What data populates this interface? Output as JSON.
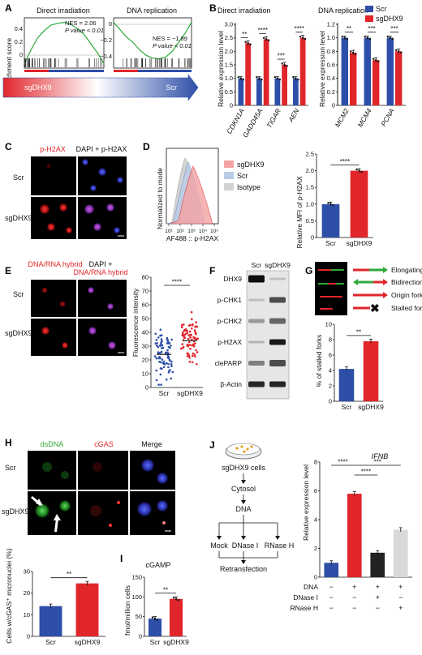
{
  "colors": {
    "scr": "#2e4fa8",
    "sg": "#e0262b",
    "gsea": "#2eaa3a",
    "grey": "#bdbdbd",
    "light": "#d9d9d9"
  },
  "A": {
    "label": "A",
    "ylabel": "Enrichment score",
    "left": {
      "title": "Direct irradiation",
      "nes": "NES = 2.06",
      "p": "P value < 0.01",
      "ticks": [
        "0.4",
        "0.2",
        "0"
      ]
    },
    "right": {
      "title": "DNA replication",
      "nes": "NES = −1.89",
      "p": "P value < 0.01",
      "ticks": [
        "0",
        "−0.2",
        "−0.4"
      ]
    },
    "sg": "sgDHX9",
    "scr": "Scr"
  },
  "B": {
    "label": "B",
    "ylabel": "Relative expression level",
    "legend": [
      "Scr",
      "sgDHX9"
    ],
    "left": {
      "title": "Direct irradiation",
      "yticks": [
        "0",
        "0.5",
        "1.0",
        "1.5",
        "2.0",
        "2.5",
        "3.0"
      ],
      "genes": [
        "CDKN1A",
        "GADD45A",
        "TIGAR",
        "AEN"
      ],
      "sig": [
        "**",
        "****",
        "***",
        "****"
      ]
    },
    "right": {
      "title": "DNA replication",
      "yticks": [
        "0",
        "0.2",
        "0.4",
        "0.6",
        "0.8",
        "1.0",
        "1.2"
      ],
      "genes": [
        "MCM2",
        "MCM4",
        "PCNA"
      ],
      "sig": [
        "**",
        "***",
        "***"
      ]
    }
  },
  "C": {
    "label": "C",
    "col1": "p-H2AX",
    "col2": "DAPI + p-H2AX",
    "rows": [
      "Scr",
      "sgDHX9"
    ]
  },
  "D": {
    "label": "D",
    "ylabel": "Normalized to mode",
    "xlabel": "AF488 :: p-H2AX",
    "xticks": [
      "10¹",
      "10²",
      "10³",
      "10⁴",
      "10⁵"
    ],
    "legend": [
      "sgDHX9",
      "Scr",
      "Isotype"
    ],
    "bar_ylabel": "Relative MFI of p-H2AX",
    "bar_yticks": [
      "0",
      "0.5",
      "1.0",
      "1.5",
      "2.0",
      "2.5"
    ],
    "bar_x": [
      "Scr",
      "sgDHX9"
    ],
    "sig": "****"
  },
  "E": {
    "label": "E",
    "col1": "DNA/RNA hybrid",
    "col2a": "DAPI +",
    "col2b": "DNA/RNA hybrid",
    "rows": [
      "Scr",
      "sgDHX9"
    ],
    "ylabel": "Fluorescence intensity",
    "yticks": [
      "0",
      "10",
      "20",
      "30",
      "40",
      "50",
      "60",
      "70",
      "80"
    ],
    "x": [
      "Scr",
      "sgDHX9"
    ],
    "sig": "****"
  },
  "F": {
    "label": "F",
    "cols": [
      "Scr",
      "sgDHX9"
    ],
    "rows": [
      "DHX9",
      "p-CHK1",
      "p-CHK2",
      "p-H2AX",
      "clePARP",
      "β-Actin"
    ]
  },
  "G": {
    "label": "G",
    "legend": [
      "Elongating fork",
      "Bidirectional fork",
      "Origin fork",
      "Stalled fork"
    ],
    "ylabel": "% of stalled forks",
    "yticks": [
      "0",
      "2",
      "4",
      "6",
      "8",
      "10"
    ],
    "x": [
      "Scr",
      "sgDHX9"
    ],
    "sig": "**"
  },
  "H": {
    "label": "H",
    "cols": [
      "dsDNA",
      "cGAS",
      "Merge"
    ],
    "rows": [
      "Scr",
      "sgDHX9"
    ],
    "ylabel": "Cells w/cGAS⁺ micronuclei (%)",
    "yticks": [
      "0",
      "10",
      "20",
      "30"
    ],
    "x": [
      "Scr",
      "sgDHX9"
    ],
    "sig": "**"
  },
  "I": {
    "label": "I",
    "title": "cGAMP",
    "ylabel": "fmol/million cells",
    "yticks": [
      "0",
      "50",
      "100",
      "150"
    ],
    "x": [
      "Scr",
      "sgDHX9"
    ],
    "sig": "**"
  },
  "J": {
    "label": "J",
    "flow": {
      "cells": "sgDHX9 cells",
      "cytosol": "Cytosol",
      "dna": "DNA",
      "mock": "Mock",
      "dnase": "DNase I",
      "rnase": "RNase H",
      "retrans": "Retransfection"
    },
    "title": "IFNB",
    "ylabel": "Relative expression level",
    "yticks": [
      "0",
      "2",
      "4",
      "6",
      "8"
    ],
    "rows": [
      {
        "name": "DNA",
        "vals": [
          "−",
          "+",
          "+",
          "+"
        ]
      },
      {
        "name": "DNase I",
        "vals": [
          "−",
          "−",
          "+",
          "−"
        ]
      },
      {
        "name": "RNase H",
        "vals": [
          "−",
          "−",
          "−",
          "+"
        ]
      }
    ],
    "sigs": [
      "****",
      "****",
      "***"
    ]
  },
  "chart_data": [
    {
      "type": "line",
      "panel": "A-left",
      "title": "Direct irradiation",
      "ylabel": "Enrichment score",
      "ylim": [
        -0.05,
        0.5
      ],
      "series": [
        {
          "values": [
            0,
            0.15,
            0.28,
            0.36,
            0.42,
            0.44,
            0.45,
            0.43,
            0.38,
            0.32,
            0.22,
            0.12,
            0.0
          ]
        }
      ]
    },
    {
      "type": "line",
      "panel": "A-right",
      "title": "DNA replication",
      "ylabel": "Enrichment score",
      "ylim": [
        -0.5,
        0.05
      ],
      "series": [
        {
          "values": [
            0,
            -0.08,
            -0.16,
            -0.22,
            -0.3,
            -0.36,
            -0.39,
            -0.4,
            -0.38,
            -0.32,
            -0.22,
            -0.12,
            0.0
          ]
        }
      ]
    },
    {
      "type": "bar",
      "panel": "B-left",
      "title": "Direct irradiation",
      "ylabel": "Relative expression level",
      "ylim": [
        0,
        3
      ],
      "categories": [
        "CDKN1A",
        "GADD45A",
        "TIGAR",
        "AEN"
      ],
      "series": [
        {
          "name": "Scr",
          "values": [
            1.0,
            1.0,
            1.0,
            1.0
          ]
        },
        {
          "name": "sgDHX9",
          "values": [
            2.3,
            2.45,
            1.5,
            2.5
          ]
        }
      ]
    },
    {
      "type": "bar",
      "panel": "B-right",
      "title": "DNA replication",
      "ylabel": "Relative expression level",
      "ylim": [
        0,
        1.2
      ],
      "categories": [
        "MCM2",
        "MCM4",
        "PCNA"
      ],
      "series": [
        {
          "name": "Scr",
          "values": [
            1.0,
            1.0,
            1.0
          ]
        },
        {
          "name": "sgDHX9",
          "values": [
            0.78,
            0.67,
            0.8
          ]
        }
      ]
    },
    {
      "type": "bar",
      "panel": "D",
      "ylabel": "Relative MFI of p-H2AX",
      "ylim": [
        0,
        2.5
      ],
      "categories": [
        "Scr",
        "sgDHX9"
      ],
      "values": [
        1.0,
        2.0
      ]
    },
    {
      "type": "scatter",
      "panel": "E",
      "ylabel": "Fluorescence intensity",
      "ylim": [
        0,
        80
      ],
      "categories": [
        "Scr",
        "sgDHX9"
      ],
      "means": [
        24,
        34
      ]
    },
    {
      "type": "bar",
      "panel": "G",
      "ylabel": "% of stalled forks",
      "ylim": [
        0,
        10
      ],
      "categories": [
        "Scr",
        "sgDHX9"
      ],
      "values": [
        4.2,
        7.8
      ]
    },
    {
      "type": "bar",
      "panel": "H",
      "ylabel": "Cells w/cGAS⁺ micronuclei (%)",
      "ylim": [
        0,
        30
      ],
      "categories": [
        "Scr",
        "sgDHX9"
      ],
      "values": [
        14,
        24.5
      ]
    },
    {
      "type": "bar",
      "panel": "I",
      "title": "cGAMP",
      "ylabel": "fmol/million cells",
      "ylim": [
        0,
        150
      ],
      "categories": [
        "Scr",
        "sgDHX9"
      ],
      "values": [
        45,
        95
      ]
    },
    {
      "type": "bar",
      "panel": "J",
      "title": "IFNB",
      "ylabel": "Relative expression level",
      "ylim": [
        0,
        8
      ],
      "values": [
        1.0,
        5.8,
        1.7,
        3.3
      ]
    }
  ]
}
